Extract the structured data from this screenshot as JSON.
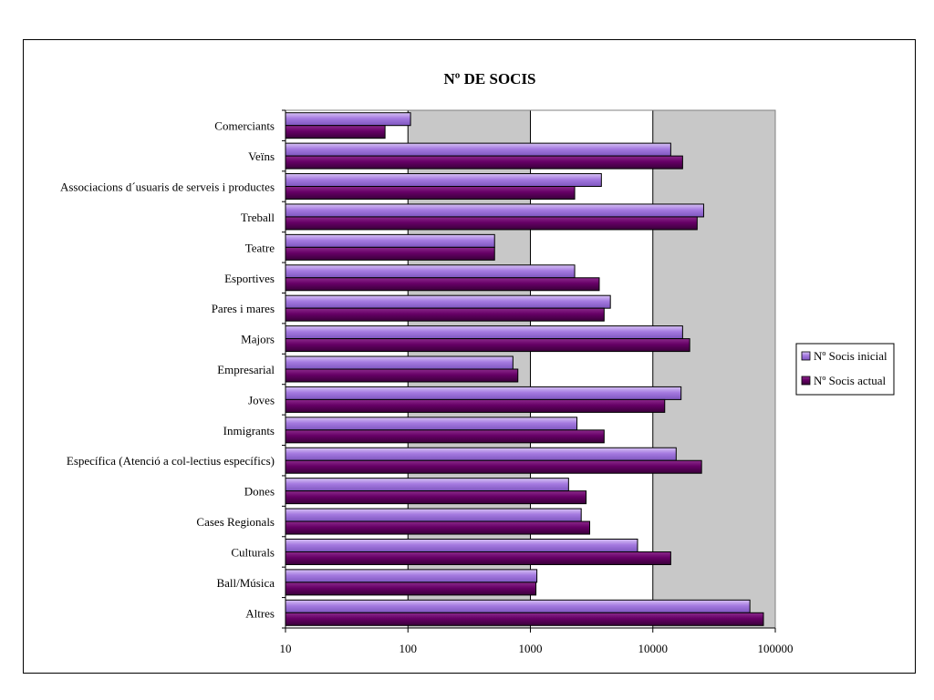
{
  "chart_data": {
    "type": "bar",
    "orientation": "horizontal",
    "title": "Nº DE SOCIS",
    "xlabel": "",
    "ylabel": "",
    "x_scale": "log",
    "xlim": [
      10,
      100000
    ],
    "x_ticks": [
      "10",
      "100",
      "1000",
      "10000",
      "100000"
    ],
    "grid": "vertical gridlines",
    "legend_position": "right",
    "categories": [
      "Comerciants",
      "Veïns",
      "Associacions d´usuaris de serveis i productes",
      "Treball",
      "Teatre",
      "Esportives",
      "Pares i mares",
      "Majors",
      "Empresarial",
      "Joves",
      "Inmigrants",
      "Específica (Atenció a col-lectius específics)",
      "Dones",
      "Cases Regionals",
      "Culturals",
      "Ball/Música",
      "Altres"
    ],
    "series": [
      {
        "name": "Nº Socis inicial",
        "color": "#9966cc",
        "values": [
          105,
          14000,
          3800,
          26000,
          510,
          2300,
          4500,
          17500,
          720,
          17000,
          2400,
          15500,
          2050,
          2600,
          7500,
          1130,
          62000
        ]
      },
      {
        "name": "Nº Socis actual",
        "color": "#660066",
        "values": [
          65,
          17500,
          2300,
          23000,
          510,
          3650,
          4000,
          20000,
          790,
          12500,
          4000,
          25000,
          2850,
          3050,
          14000,
          1110,
          80000
        ]
      }
    ]
  }
}
